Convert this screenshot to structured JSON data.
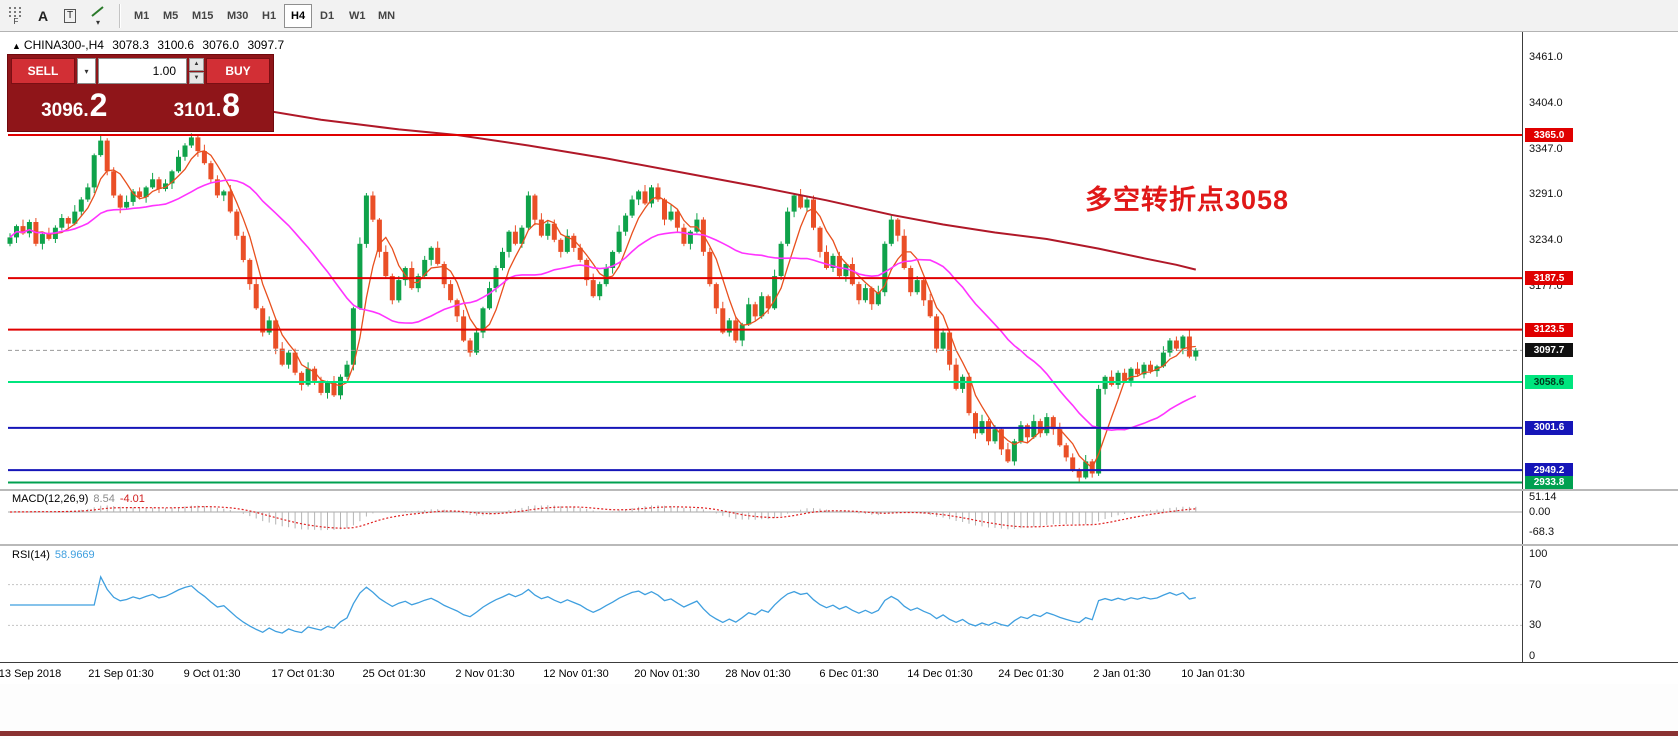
{
  "toolbar": {
    "tools": {
      "a_label": "A",
      "t_label": "T",
      "f_label": "F"
    },
    "timeframes": [
      {
        "label": "M1",
        "active": false
      },
      {
        "label": "M5",
        "active": false
      },
      {
        "label": "M15",
        "active": false
      },
      {
        "label": "M30",
        "active": false
      },
      {
        "label": "H1",
        "active": false
      },
      {
        "label": "H4",
        "active": true
      },
      {
        "label": "D1",
        "active": false
      },
      {
        "label": "W1",
        "active": false
      },
      {
        "label": "MN",
        "active": false
      }
    ]
  },
  "symbol_bar": {
    "symbol": "CHINA300-,H4",
    "open": "3078.3",
    "high": "3100.6",
    "low": "3076.0",
    "close": "3097.7"
  },
  "trade_panel": {
    "sell_label": "SELL",
    "buy_label": "BUY",
    "volume": "1.00",
    "sell_price_main": "3096.",
    "sell_price_big": "2",
    "buy_price_main": "3101.",
    "buy_price_big": "8"
  },
  "annotation": {
    "text": "多空转折点3058"
  },
  "time_axis": [
    "13 Sep 2018",
    "21 Sep 01:30",
    "9 Oct 01:30",
    "17 Oct 01:30",
    "25 Oct 01:30",
    "2 Nov 01:30",
    "12 Nov 01:30",
    "20 Nov 01:30",
    "28 Nov 01:30",
    "6 Dec 01:30",
    "14 Dec 01:30",
    "24 Dec 01:30",
    "2 Jan 01:30",
    "10 Jan 01:30"
  ],
  "chart_data": {
    "type": "candlestick",
    "symbol": "CHINA300-",
    "timeframe": "H4",
    "ohlc_current": {
      "open": 3078.3,
      "high": 3100.6,
      "low": 3076.0,
      "close": 3097.7
    },
    "current_price": 3097.7,
    "closes": [
      3238,
      3252,
      3243,
      3257,
      3230,
      3242,
      3236,
      3250,
      3262,
      3255,
      3270,
      3285,
      3300,
      3340,
      3358,
      3320,
      3290,
      3275,
      3282,
      3295,
      3288,
      3300,
      3310,
      3298,
      3305,
      3320,
      3338,
      3352,
      3362,
      3345,
      3330,
      3310,
      3290,
      3295,
      3270,
      3240,
      3210,
      3180,
      3150,
      3120,
      3135,
      3100,
      3080,
      3095,
      3070,
      3055,
      3075,
      3060,
      3045,
      3058,
      3042,
      3065,
      3080,
      3150,
      3230,
      3290,
      3260,
      3220,
      3190,
      3160,
      3185,
      3200,
      3175,
      3190,
      3210,
      3225,
      3205,
      3180,
      3160,
      3140,
      3110,
      3095,
      3120,
      3150,
      3175,
      3200,
      3220,
      3245,
      3230,
      3250,
      3290,
      3260,
      3240,
      3255,
      3235,
      3220,
      3240,
      3225,
      3210,
      3185,
      3165,
      3180,
      3200,
      3220,
      3245,
      3265,
      3285,
      3295,
      3280,
      3300,
      3285,
      3260,
      3270,
      3250,
      3230,
      3245,
      3260,
      3220,
      3180,
      3150,
      3120,
      3135,
      3110,
      3130,
      3155,
      3140,
      3165,
      3150,
      3190,
      3230,
      3270,
      3290,
      3275,
      3285,
      3250,
      3220,
      3200,
      3215,
      3190,
      3205,
      3180,
      3160,
      3175,
      3155,
      3170,
      3230,
      3260,
      3240,
      3200,
      3170,
      3185,
      3160,
      3140,
      3100,
      3120,
      3080,
      3050,
      3065,
      3020,
      2995,
      3010,
      2985,
      3000,
      2975,
      2960,
      2985,
      3005,
      2990,
      3010,
      2995,
      3015,
      3000,
      2980,
      2965,
      2950,
      2940,
      2960,
      2945,
      3050,
      3065,
      3055,
      3070,
      3060,
      3075,
      3068,
      3080,
      3072,
      3078,
      3095,
      3110,
      3100,
      3115,
      3090,
      3097.7
    ],
    "slow_ma_points": [
      [
        0,
        3450
      ],
      [
        12,
        3434
      ],
      [
        24,
        3416
      ],
      [
        36,
        3400
      ],
      [
        48,
        3384
      ],
      [
        60,
        3372
      ],
      [
        69,
        3365
      ],
      [
        80,
        3352
      ],
      [
        92,
        3336
      ],
      [
        104,
        3318
      ],
      [
        116,
        3300
      ],
      [
        126,
        3284
      ],
      [
        136,
        3266
      ],
      [
        144,
        3254
      ],
      [
        152,
        3244
      ],
      [
        160,
        3236
      ],
      [
        168,
        3224
      ],
      [
        175,
        3212
      ],
      [
        180,
        3204
      ],
      [
        183,
        3198
      ]
    ],
    "hlines": [
      {
        "price": 3365.0,
        "color": "#e00000"
      },
      {
        "price": 3187.5,
        "color": "#e00000"
      },
      {
        "price": 3123.5,
        "color": "#e00000"
      },
      {
        "price": 3058.6,
        "color": "#00e57e"
      },
      {
        "price": 3001.6,
        "color": "#1515b8"
      },
      {
        "price": 2949.2,
        "color": "#1515b8"
      },
      {
        "price": 2933.8,
        "color": "#00a050"
      }
    ],
    "y_axis_ticks": [
      "3461.0",
      "3404.0",
      "3347.0",
      "3291.0",
      "3234.0",
      "3177.0"
    ],
    "price_badges": [
      {
        "label": "3365.0",
        "price": 3365.0,
        "bg": "#e00000",
        "fg": "#ffffff"
      },
      {
        "label": "3187.5",
        "price": 3187.5,
        "bg": "#e00000",
        "fg": "#ffffff"
      },
      {
        "label": "3123.5",
        "price": 3123.5,
        "bg": "#e00000",
        "fg": "#ffffff"
      },
      {
        "label": "3097.7",
        "price": 3097.7,
        "bg": "#101010",
        "fg": "#ffffff"
      },
      {
        "label": "3058.6",
        "price": 3058.6,
        "bg": "#00e57e",
        "fg": "#00391d"
      },
      {
        "label": "3001.6",
        "price": 3001.6,
        "bg": "#1515b8",
        "fg": "#ffffff"
      },
      {
        "label": "2949.2",
        "price": 2949.2,
        "bg": "#1515b8",
        "fg": "#ffffff"
      },
      {
        "label": "2933.8",
        "price": 2933.8,
        "bg": "#00a050",
        "fg": "#ffffff"
      }
    ],
    "colors": {
      "up": "#0fa24a",
      "down": "#ea4f27",
      "ma_fast": "#e8501e",
      "ma_mid": "#ff33ff",
      "ma_slow": "#b01828",
      "macd_hist": "#b4b4b4",
      "macd_signal": "#e02020",
      "rsi_line": "#3f9fdf"
    },
    "indicators": {
      "macd": {
        "label": "MACD(12,26,9)",
        "value_main": "8.54",
        "value_signal": "-4.01",
        "axis": [
          "51.14",
          "0.00",
          "-68.3"
        ]
      },
      "rsi": {
        "label": "RSI(14)",
        "value": "58.9669",
        "axis": [
          "100",
          "70",
          "30",
          "0"
        ],
        "levels": [
          70,
          30
        ]
      }
    }
  }
}
